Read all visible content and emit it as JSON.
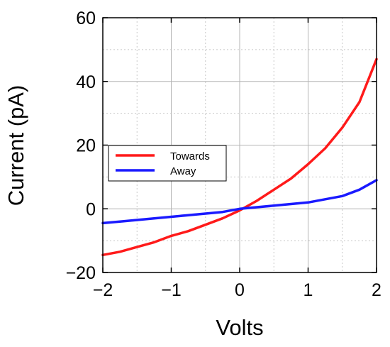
{
  "chart_data": {
    "type": "line",
    "xlabel": "Volts",
    "ylabel": "Current (pA)",
    "xlim": [
      -2,
      2
    ],
    "ylim": [
      -20,
      60
    ],
    "xticks": [
      -2,
      -1,
      0,
      1,
      2
    ],
    "xtick_labels": [
      "−2",
      "−1",
      "0",
      "1",
      "2"
    ],
    "yticks": [
      -20,
      0,
      20,
      40,
      60
    ],
    "ytick_labels": [
      "−20",
      "0",
      "20",
      "40",
      "60"
    ],
    "grid": true,
    "legend_position": "center-left",
    "x": [
      -2.0,
      -1.75,
      -1.5,
      -1.25,
      -1.0,
      -0.75,
      -0.5,
      -0.25,
      0.0,
      0.25,
      0.5,
      0.75,
      1.0,
      1.25,
      1.5,
      1.75,
      2.0
    ],
    "series": [
      {
        "name": "Towards",
        "color": "#ff1a1a",
        "values": [
          -14.5,
          -13.5,
          -12,
          -10.5,
          -8.5,
          -7,
          -5,
          -3,
          -0.5,
          2.5,
          6,
          9.5,
          14,
          19,
          25.5,
          33.5,
          47
        ]
      },
      {
        "name": "Away",
        "color": "#1a1aff",
        "values": [
          -4.5,
          -4,
          -3.5,
          -3,
          -2.5,
          -2,
          -1.5,
          -1,
          0,
          0.5,
          1,
          1.5,
          2,
          3,
          4,
          6,
          9
        ]
      }
    ]
  }
}
